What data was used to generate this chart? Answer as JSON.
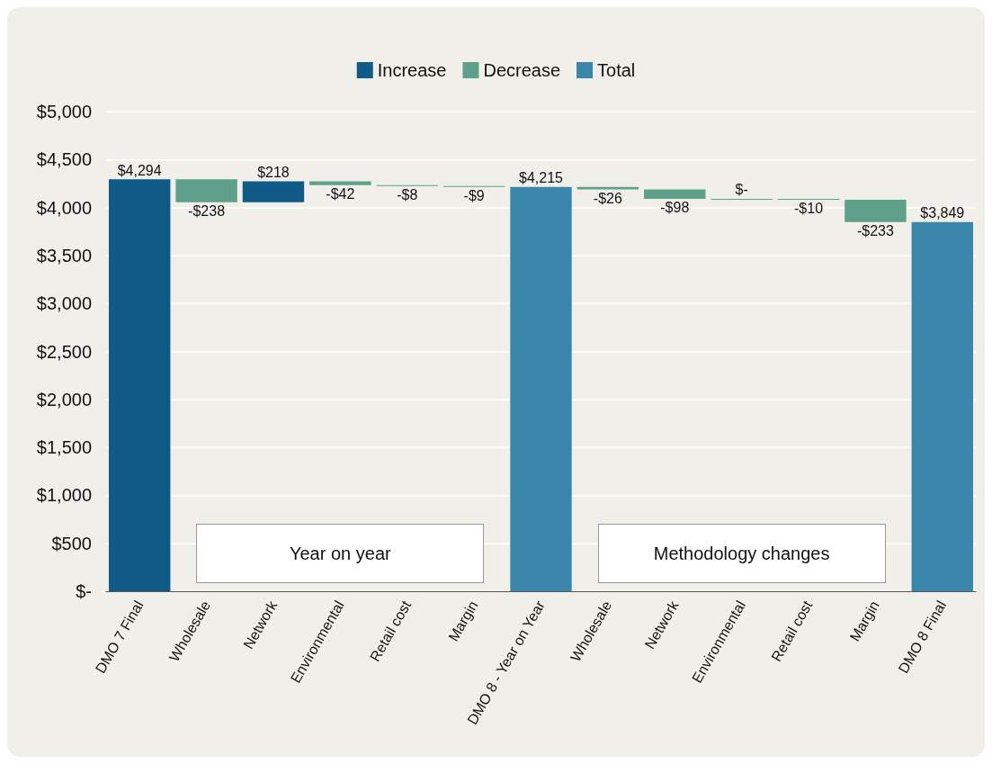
{
  "chart_data": {
    "type": "bar",
    "categories": [
      "DMO 7 Final",
      "Wholesale",
      "Network",
      "Environmental",
      "Retail cost",
      "Margin",
      "DMO 8 - Year on Year",
      "Wholesale",
      "Network",
      "Environmental",
      "Retail cost",
      "Margin",
      "DMO 8 Final"
    ],
    "series": [
      {
        "name": "Increase",
        "color": "#0f5a87",
        "values": [
          4294,
          null,
          218,
          null,
          null,
          null,
          null,
          null,
          null,
          null,
          null,
          null,
          null
        ],
        "base": [
          0,
          null,
          4056,
          null,
          null,
          null,
          null,
          null,
          null,
          null,
          null,
          null,
          null
        ],
        "value_labels": [
          "$4,294",
          null,
          "$218",
          null,
          null,
          null,
          null,
          null,
          null,
          null,
          null,
          null,
          null
        ]
      },
      {
        "name": "Decrease",
        "color": "#5fa08a",
        "values": [
          null,
          -238,
          null,
          -42,
          -8,
          -9,
          null,
          -26,
          -98,
          0,
          -10,
          -233,
          null
        ],
        "base": [
          null,
          4294,
          null,
          4274,
          4232,
          4224,
          null,
          4215,
          4189,
          4091,
          4091,
          4081,
          null
        ],
        "value_labels": [
          null,
          "-$238",
          null,
          "-$42",
          "-$8",
          "-$9",
          null,
          "-$26",
          "-$98",
          "$-",
          "-$10",
          "-$233",
          null
        ]
      },
      {
        "name": "Total",
        "color": "#3a87ab",
        "values": [
          null,
          null,
          null,
          null,
          null,
          null,
          4215,
          null,
          null,
          null,
          null,
          null,
          3849
        ],
        "base": [
          null,
          null,
          null,
          null,
          null,
          null,
          0,
          null,
          null,
          null,
          null,
          null,
          0
        ],
        "value_labels": [
          null,
          null,
          null,
          null,
          null,
          null,
          "$4,215",
          null,
          null,
          null,
          null,
          null,
          "$3,849"
        ]
      }
    ],
    "ylim": [
      0,
      5000
    ],
    "yticks": [
      {
        "value": 0,
        "label": "$-"
      },
      {
        "value": 500,
        "label": "$500"
      },
      {
        "value": 1000,
        "label": "$1,000"
      },
      {
        "value": 1500,
        "label": "$1,500"
      },
      {
        "value": 2000,
        "label": "$2,000"
      },
      {
        "value": 2500,
        "label": "$2,500"
      },
      {
        "value": 3000,
        "label": "$3,000"
      },
      {
        "value": 3500,
        "label": "$3,500"
      },
      {
        "value": 4000,
        "label": "$4,000"
      },
      {
        "value": 4500,
        "label": "$4,500"
      },
      {
        "value": 5000,
        "label": "$5,000"
      }
    ],
    "grid": "y",
    "legend": "top",
    "annotations": [
      "Year on year",
      "Methodology changes"
    ]
  }
}
